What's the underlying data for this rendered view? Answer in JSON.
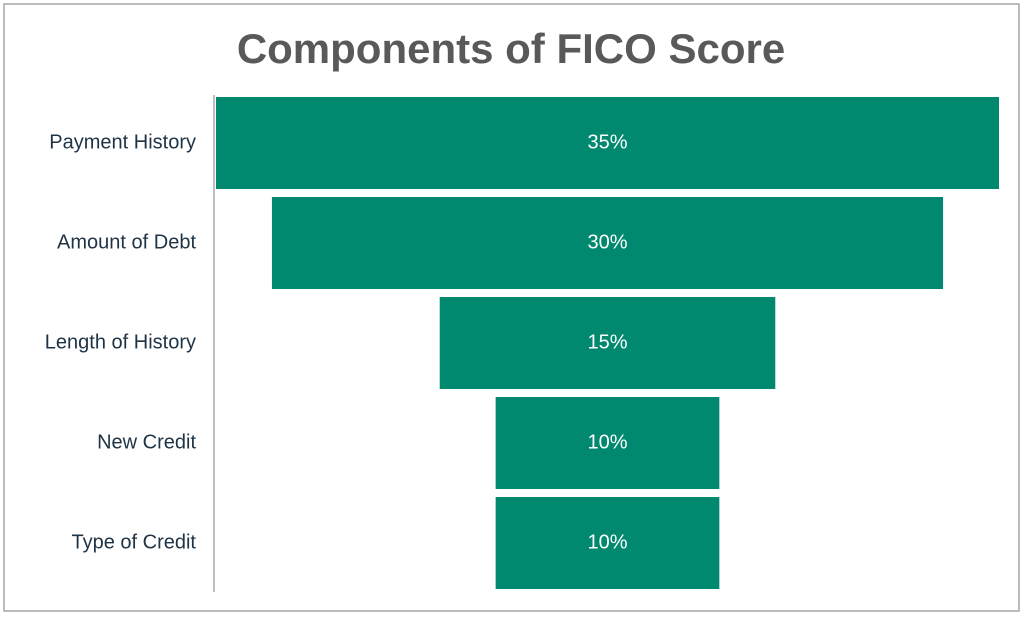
{
  "chart_data": {
    "type": "funnel",
    "title": "Components of FICO Score",
    "categories": [
      "Payment History",
      "Amount of Debt",
      "Length of History",
      "New Credit",
      "Type of Credit"
    ],
    "values": [
      35,
      30,
      15,
      10,
      10
    ],
    "value_labels": [
      "35%",
      "30%",
      "15%",
      "10%",
      "10%"
    ],
    "color": "#00896f"
  }
}
